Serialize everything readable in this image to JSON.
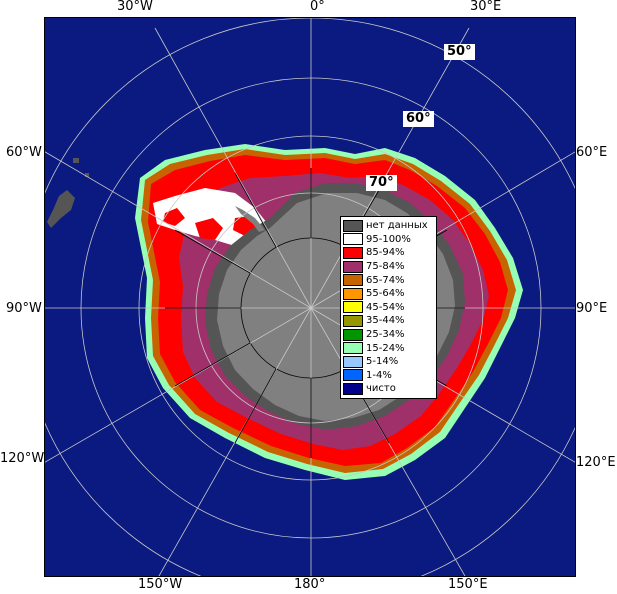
{
  "map": {
    "colors": {
      "ocean": "#0a1a80",
      "land": "#808080",
      "no_data": "#555555",
      "grid": "#c8c8c8",
      "ice_95_100": "#ffffff",
      "ice_85_94": "#ff0000",
      "ice_75_84": "#a0306a",
      "ice_65_74": "#c86400",
      "ice_55_64": "#ff9600",
      "ice_45_54": "#ffff00",
      "ice_35_44": "#969600",
      "ice_25_34": "#009600",
      "ice_15_24": "#96ffb4",
      "ice_5_14": "#96c8ff",
      "ice_1_4": "#0064ff",
      "clear": "#00008c"
    },
    "longitude_labels": {
      "top_30w": "30°W",
      "top_0": "0°",
      "top_30e": "30°E",
      "left_60w": "60°W",
      "left_90w": "90°W",
      "left_120w": "120°W",
      "right_60e": "60°E",
      "right_90e": "90°E",
      "right_120e": "120°E",
      "bottom_150w": "150°W",
      "bottom_180": "180°",
      "bottom_150e": "150°E"
    },
    "latitude_labels": {
      "lat_50": "50°",
      "lat_60": "60°",
      "lat_70": "70°"
    }
  },
  "legend": {
    "items": [
      {
        "label": "нет данных",
        "color": "#555555"
      },
      {
        "label": "95-100%",
        "color": "#ffffff"
      },
      {
        "label": "85-94%",
        "color": "#ff0000"
      },
      {
        "label": "75-84%",
        "color": "#a0306a"
      },
      {
        "label": "65-74%",
        "color": "#c86400"
      },
      {
        "label": "55-64%",
        "color": "#ff9600"
      },
      {
        "label": "45-54%",
        "color": "#ffff00"
      },
      {
        "label": "35-44%",
        "color": "#969600"
      },
      {
        "label": "25-34%",
        "color": "#009600"
      },
      {
        "label": "15-24%",
        "color": "#96ffb4"
      },
      {
        "label": "5-14%",
        "color": "#96c8ff"
      },
      {
        "label": "1-4%",
        "color": "#0064ff"
      },
      {
        "label": "чисто",
        "color": "#00008c"
      }
    ]
  }
}
